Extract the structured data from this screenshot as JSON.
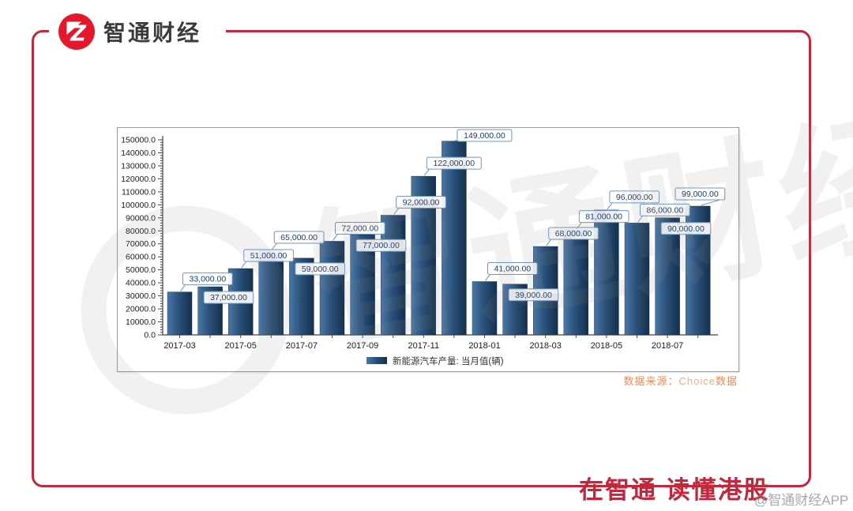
{
  "header": {
    "brand": "智通财经"
  },
  "chart_data": {
    "type": "bar",
    "title": "",
    "legend": "新能源汽车产量: 当月值(辆)",
    "x": [
      "2017-03",
      "2017-04",
      "2017-05",
      "2017-06",
      "2017-07",
      "2017-08",
      "2017-09",
      "2017-10",
      "2017-11",
      "2017-12",
      "2018-01",
      "2018-02",
      "2018-03",
      "2018-04",
      "2018-05",
      "2018-06",
      "2018-07",
      "2018-08"
    ],
    "values": [
      33000,
      37000,
      51000,
      65000,
      59000,
      72000,
      77000,
      92000,
      122000,
      149000,
      41000,
      39000,
      68000,
      81000,
      96000,
      86000,
      90000,
      99000
    ],
    "value_labels": [
      "33,000.00",
      "37,000.00",
      "51,000.00",
      "65,000.00",
      "59,000.00",
      "72,000.00",
      "77,000.00",
      "92,000.00",
      "122,000.00",
      "149,000.00",
      "41,000.00",
      "39,000.00",
      "68,000.00",
      "81,000.00",
      "96,000.00",
      "86,000.00",
      "90,000.00",
      "99,000.00"
    ],
    "label_pos": [
      "above",
      "below",
      "above",
      "above",
      "below",
      "above",
      "below",
      "above",
      "above",
      "above",
      "above",
      "below",
      "above",
      "above",
      "above",
      "above",
      "below",
      "above-left"
    ],
    "x_tick_labels": [
      "2017-03",
      "2017-05",
      "2017-07",
      "2017-09",
      "2017-11",
      "2018-01",
      "2018-03",
      "2018-05",
      "2018-07"
    ],
    "ylim": [
      0,
      150000
    ],
    "ytick_major": 10000,
    "ytick_minor": 2000,
    "ytick_decimals": 1,
    "grid": "off",
    "legend_position": "bottom-center",
    "colors": {
      "bar_light": "#4a78a8",
      "bar_mid": "#2b5179",
      "bar_dark": "#14304e",
      "callout_border": "#7096bf",
      "callout_text": "#1c3e6e",
      "axis": "#444444",
      "tick_label": "#1a1a1a"
    }
  },
  "source": {
    "label": "数据来源：",
    "name": "Choice",
    "suffix": "数据"
  },
  "footer": {
    "slogan": "在智通 读懂港股",
    "app_watermark": "@智通财经APP"
  },
  "watermark": {
    "text": "智通财经"
  },
  "frame_color": "#c2273c",
  "logo_color": "#e3182b"
}
